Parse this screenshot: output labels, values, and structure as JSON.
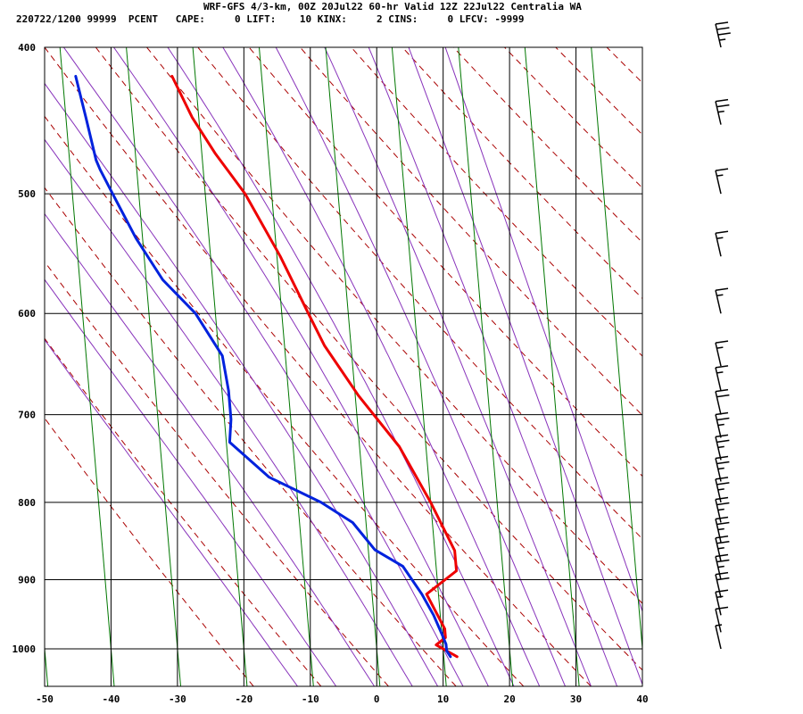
{
  "header": {
    "title": "WRF-GFS 4/3-km, 00Z 20Jul22 60-hr Valid 12Z 22Jul22 Centralia WA",
    "indices_line": "220722/1200 99999  PCENT   CAPE:     0 LIFT:    10 KINX:     2 CINS:     0 LFCV: -9999"
  },
  "colors": {
    "temperature": "#ee0000",
    "dewpoint": "#0022dd",
    "dry_adiabat": "#aa0000",
    "moist_adiabat": "#8833bb",
    "isotherm": "#007700",
    "grid": "#000000"
  },
  "chart_data": {
    "type": "line",
    "subtype": "skew-T sounding",
    "xlim": [
      -50,
      40
    ],
    "x_ticks": [
      "-50",
      "-40",
      "-30",
      "-20",
      "-10",
      "0",
      "10",
      "20",
      "30",
      "40"
    ],
    "y_ticks": [
      "400",
      "500",
      "600",
      "700",
      "800",
      "900",
      "1000"
    ],
    "y_scale": "log pressure (hPa), inverted",
    "grid": true,
    "series": [
      {
        "key": "temperature",
        "color": "#ee0000",
        "points": [
          [
            12,
            1012
          ],
          [
            9,
            994
          ],
          [
            10.5,
            983
          ],
          [
            10.5,
            970
          ],
          [
            8.2,
            920
          ],
          [
            13,
            888
          ],
          [
            13,
            861
          ],
          [
            10,
            800
          ],
          [
            6,
            735
          ],
          [
            0.5,
            680
          ],
          [
            -4,
            630
          ],
          [
            -6,
            600
          ],
          [
            -9.5,
            550
          ],
          [
            -14,
            500
          ],
          [
            -18,
            470
          ],
          [
            -21,
            445
          ],
          [
            -23.5,
            418
          ]
        ]
      },
      {
        "key": "dewpoint",
        "color": "#0022dd",
        "points": [
          [
            11,
            1012
          ],
          [
            10.5,
            1003
          ],
          [
            10.5,
            993
          ],
          [
            10,
            978
          ],
          [
            9,
            950
          ],
          [
            7.5,
            920
          ],
          [
            5,
            882
          ],
          [
            1,
            860
          ],
          [
            -2,
            825
          ],
          [
            -6.5,
            800
          ],
          [
            -14,
            770
          ],
          [
            -19.5,
            730
          ],
          [
            -19,
            705
          ],
          [
            -19,
            675
          ],
          [
            -19.5,
            640
          ],
          [
            -23,
            600
          ],
          [
            -27.5,
            570
          ],
          [
            -31,
            535
          ],
          [
            -33.5,
            505
          ],
          [
            -35.5,
            482
          ],
          [
            -36,
            475
          ],
          [
            -37,
            445
          ],
          [
            -38,
            418
          ]
        ]
      }
    ],
    "wind_barbs": [
      {
        "p": 1000,
        "speed_kt": 5
      },
      {
        "p": 975,
        "speed_kt": 10
      },
      {
        "p": 950,
        "speed_kt": 15
      },
      {
        "p": 925,
        "speed_kt": 20
      },
      {
        "p": 900,
        "speed_kt": 25
      },
      {
        "p": 875,
        "speed_kt": 25
      },
      {
        "p": 850,
        "speed_kt": 25
      },
      {
        "p": 825,
        "speed_kt": 25
      },
      {
        "p": 800,
        "speed_kt": 25
      },
      {
        "p": 775,
        "speed_kt": 25
      },
      {
        "p": 750,
        "speed_kt": 25
      },
      {
        "p": 725,
        "speed_kt": 25
      },
      {
        "p": 700,
        "speed_kt": 20
      },
      {
        "p": 675,
        "speed_kt": 15
      },
      {
        "p": 650,
        "speed_kt": 15
      },
      {
        "p": 600,
        "speed_kt": 15
      },
      {
        "p": 550,
        "speed_kt": 15
      },
      {
        "p": 500,
        "speed_kt": 15
      },
      {
        "p": 450,
        "speed_kt": 25
      },
      {
        "p": 400,
        "speed_kt": 35
      }
    ]
  }
}
